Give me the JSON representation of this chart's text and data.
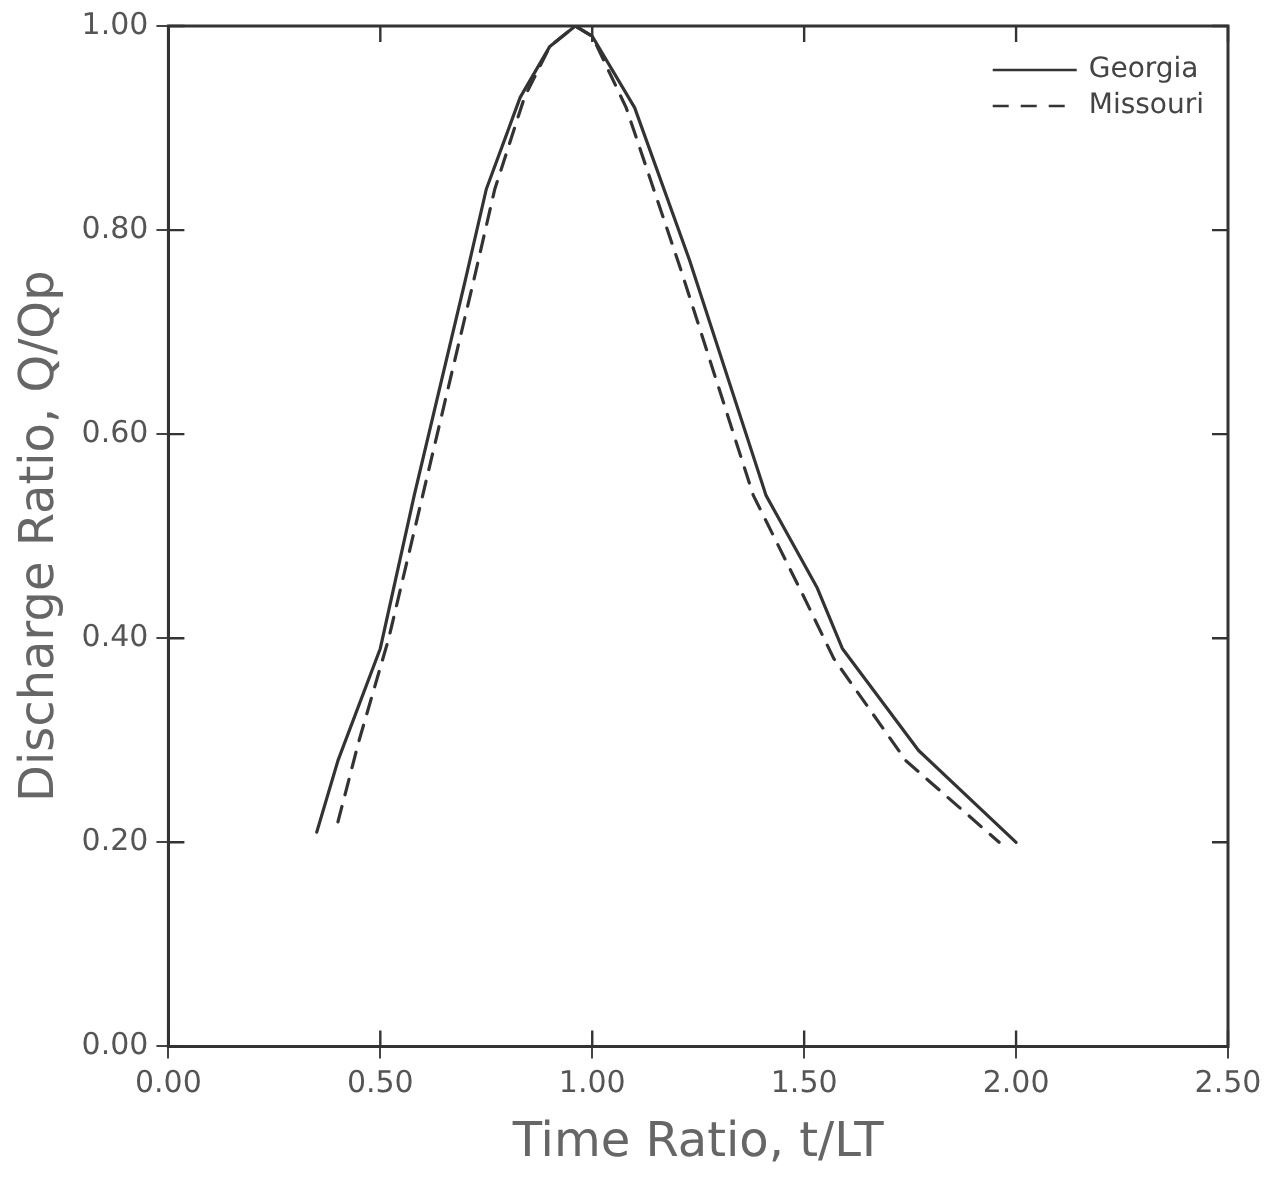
{
  "chart_data": {
    "type": "line",
    "xlabel": "Time Ratio, t/LT",
    "ylabel": "Discharge Ratio, Q/Qp",
    "xlim": [
      0,
      2.5
    ],
    "xticks": [
      {
        "value": 0,
        "label": "0.00"
      },
      {
        "value": 0.5,
        "label": "0.50"
      },
      {
        "value": 1,
        "label": "1.00"
      },
      {
        "value": 1.5,
        "label": "1.50"
      },
      {
        "value": 2,
        "label": "2.00"
      },
      {
        "value": 2.5,
        "label": "2.50"
      }
    ],
    "ylim": [
      0,
      1
    ],
    "yticks": [
      {
        "value": 0,
        "label": "0.00"
      },
      {
        "value": 0.2,
        "label": "0.20"
      },
      {
        "value": 0.4,
        "label": "0.40"
      },
      {
        "value": 0.6,
        "label": "0.60"
      },
      {
        "value": 0.8,
        "label": "0.80"
      },
      {
        "value": 1,
        "label": "1.00"
      }
    ],
    "grid": false,
    "legend": "top right",
    "marker": "none",
    "series": [
      {
        "name": "Georgia",
        "color": "#333333",
        "line_style": "solid",
        "x": [
          0.35,
          0.4,
          0.5,
          0.58,
          0.7,
          0.75,
          0.83,
          0.9,
          0.96,
          1.0,
          1.1,
          1.23,
          1.41,
          1.53,
          1.59,
          1.77,
          2.0
        ],
        "values": [
          0.21,
          0.28,
          0.39,
          0.54,
          0.75,
          0.84,
          0.93,
          0.98,
          1.0,
          0.99,
          0.92,
          0.77,
          0.54,
          0.45,
          0.39,
          0.29,
          0.2
        ]
      },
      {
        "name": "Missouri",
        "color": "#333333",
        "line_style": "dashed",
        "x": [
          0.4,
          0.45,
          0.52,
          0.6,
          0.72,
          0.77,
          0.84,
          0.9,
          0.96,
          1.0,
          1.08,
          1.21,
          1.38,
          1.5,
          1.57,
          1.74,
          1.96
        ],
        "values": [
          0.22,
          0.3,
          0.4,
          0.54,
          0.75,
          0.84,
          0.93,
          0.98,
          1.0,
          0.99,
          0.92,
          0.76,
          0.54,
          0.44,
          0.38,
          0.28,
          0.2
        ]
      }
    ]
  }
}
